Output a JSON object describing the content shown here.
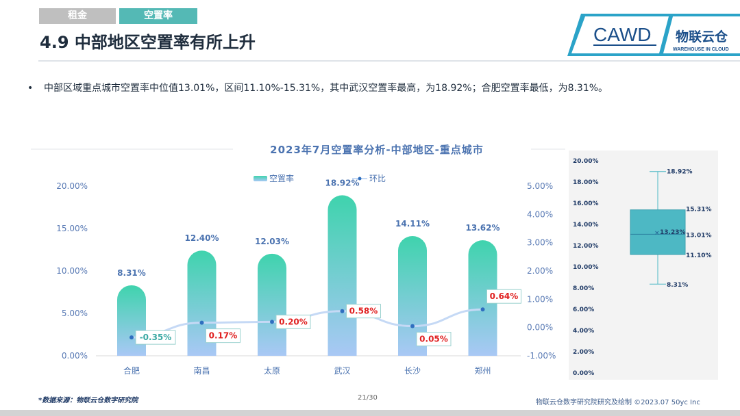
{
  "tabs": [
    "租金",
    "空置率"
  ],
  "page_title": "4.9 中部地区空置率有所上升",
  "logo": {
    "text": "CAWD",
    "subtext": "物联云仓",
    "tagline": "WAREHOUSE IN CLOUD"
  },
  "bullet_text": "中部区域重点城市空置率中位值13.01%，区间11.10%-15.31%，其中武汉空置率最高，为18.92%；合肥空置率最低，为8.31%。",
  "footer": {
    "source": "*数据来源：物联云仓数字研究院",
    "page": "21/30",
    "right": "物联云仓数字研究院研究及绘制   ©2023.07  50yc Inc"
  },
  "colors": {
    "accent": "#54b9b5",
    "bar_top": "#3fd3ad",
    "bar_bottom": "#a9c8f5",
    "line": "#c5d9f5",
    "negative": "#3aa9a3",
    "positive": "#e02020",
    "box": "#4db8c4"
  },
  "chart_data": [
    {
      "type": "bar",
      "title": "2023年7月空置率分析-中部地区-重点城市",
      "categories": [
        "合肥",
        "南昌",
        "太原",
        "武汉",
        "长沙",
        "郑州"
      ],
      "series": [
        {
          "name": "空置率",
          "axis": "left",
          "values": [
            8.31,
            12.4,
            12.03,
            18.92,
            14.11,
            13.62
          ],
          "labels": [
            "8.31%",
            "12.40%",
            "12.03%",
            "18.92%",
            "14.11%",
            "13.62%"
          ]
        },
        {
          "name": "环比",
          "type": "line",
          "axis": "right",
          "values": [
            -0.35,
            0.17,
            0.2,
            0.58,
            0.05,
            0.64
          ],
          "labels": [
            "-0.35%",
            "0.17%",
            "0.20%",
            "0.58%",
            "0.05%",
            "0.64%"
          ]
        }
      ],
      "y_left": {
        "min": 0,
        "max": 20,
        "ticks": [
          "0.00%",
          "5.00%",
          "10.00%",
          "15.00%",
          "20.00%"
        ]
      },
      "y_right": {
        "min": -1,
        "max": 5,
        "ticks": [
          "-1.00%",
          "0.00%",
          "1.00%",
          "2.00%",
          "3.00%",
          "4.00%",
          "5.00%"
        ]
      },
      "legend": "top-center",
      "grid": false
    },
    {
      "type": "box",
      "min": 8.31,
      "q1": 11.1,
      "median": 13.01,
      "mean": 13.23,
      "q3": 15.31,
      "max": 18.92,
      "labels": {
        "min": "8.31%",
        "q1": "11.10%",
        "median": "13.01%",
        "mean": "13.23%",
        "q3": "15.31%",
        "max": "18.92%"
      },
      "y_axis": {
        "min": 0,
        "max": 20,
        "ticks": [
          "0.00%",
          "2.00%",
          "4.00%",
          "6.00%",
          "8.00%",
          "10.00%",
          "12.00%",
          "14.00%",
          "16.00%",
          "18.00%",
          "20.00%"
        ]
      }
    }
  ]
}
